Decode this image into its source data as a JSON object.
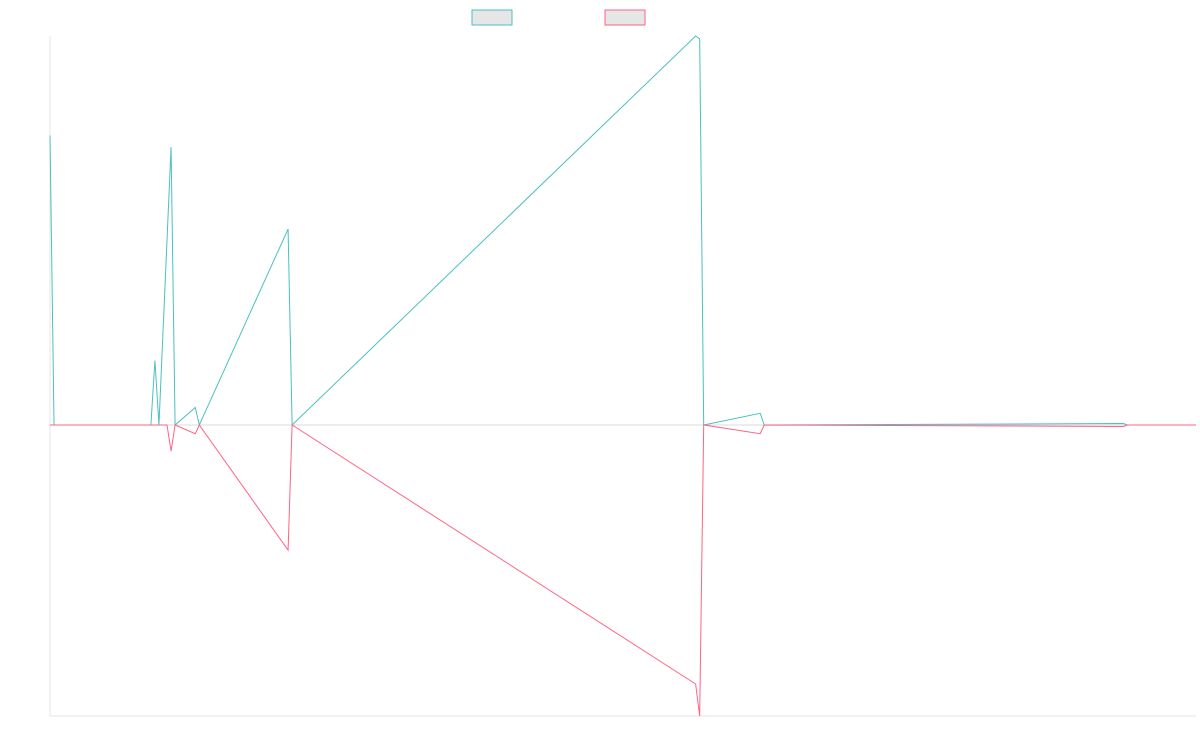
{
  "chart_data": {
    "type": "line",
    "title": "",
    "xlabel": "",
    "ylabel": "",
    "grid": false,
    "legend": "top-center",
    "x_count": 285,
    "ylim": [
      -100,
      100
    ],
    "series": [
      {
        "name": "",
        "color": "#4bc0c0",
        "fill": "#e6e6e6",
        "points": [
          [
            0,
            99
          ],
          [
            1,
            0
          ],
          [
            25,
            0
          ],
          [
            26,
            22
          ],
          [
            27,
            0
          ],
          [
            30,
            95
          ],
          [
            31,
            0
          ],
          [
            36,
            6
          ],
          [
            37,
            0
          ],
          [
            59,
            67
          ],
          [
            60,
            0
          ],
          [
            160,
            133
          ],
          [
            161,
            132
          ],
          [
            162,
            0
          ],
          [
            176,
            4
          ],
          [
            177,
            0
          ],
          [
            266,
            0.5
          ],
          [
            267,
            0
          ],
          [
            284,
            0
          ]
        ]
      },
      {
        "name": "",
        "color": "#ff6384",
        "fill": "#e6e6e6",
        "points": [
          [
            0,
            0
          ],
          [
            29,
            0
          ],
          [
            30,
            -9
          ],
          [
            31,
            0
          ],
          [
            36,
            -3
          ],
          [
            37,
            0
          ],
          [
            59,
            -43
          ],
          [
            60,
            0
          ],
          [
            160,
            -89
          ],
          [
            161,
            -100
          ],
          [
            162,
            0
          ],
          [
            176,
            -3
          ],
          [
            177,
            0
          ],
          [
            266,
            -0.5
          ],
          [
            267,
            0
          ],
          [
            284,
            0
          ]
        ]
      }
    ]
  }
}
